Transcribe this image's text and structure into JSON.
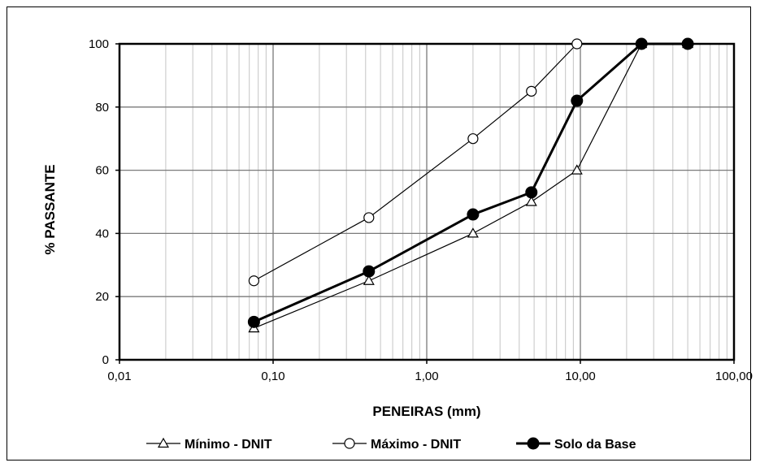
{
  "chart_data": {
    "type": "line",
    "title": "",
    "xlabel": "PENEIRAS (mm)",
    "ylabel": "% PASSANTE",
    "x_scale": "log",
    "xlim": [
      0.01,
      100
    ],
    "ylim": [
      0,
      100
    ],
    "x_tick_labels": [
      "0,01",
      "0,10",
      "1,00",
      "10,00",
      "100,00"
    ],
    "y_ticks": [
      0,
      20,
      40,
      60,
      80,
      100
    ],
    "grid": true,
    "legend_position": "bottom",
    "series": [
      {
        "name": "Mínimo - DNIT",
        "marker": "triangle-open",
        "line_weight": "thin",
        "color": "#000000",
        "x": [
          0.075,
          0.42,
          2.0,
          4.8,
          9.5,
          25.0,
          50.0
        ],
        "y": [
          10,
          25,
          40,
          50,
          60,
          100,
          100
        ]
      },
      {
        "name": "Máximo - DNIT",
        "marker": "circle-open",
        "line_weight": "thin",
        "color": "#000000",
        "x": [
          0.075,
          0.42,
          2.0,
          4.8,
          9.5
        ],
        "y": [
          25,
          45,
          70,
          85,
          100
        ]
      },
      {
        "name": "Solo da Base",
        "marker": "circle-filled",
        "line_weight": "thick",
        "color": "#000000",
        "x": [
          0.075,
          0.42,
          2.0,
          4.8,
          9.5,
          25.0,
          50.0
        ],
        "y": [
          12,
          28,
          46,
          53,
          82,
          100,
          100
        ]
      }
    ]
  }
}
